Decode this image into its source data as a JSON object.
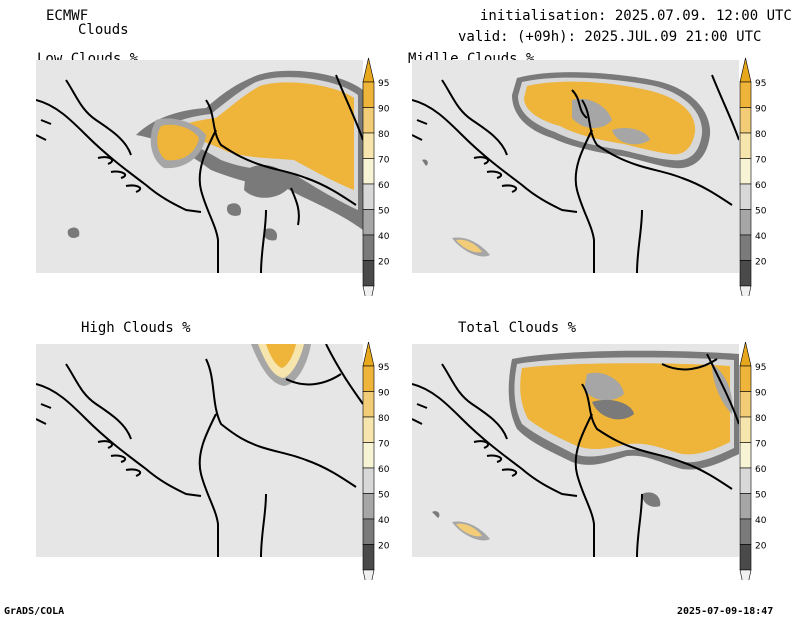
{
  "header": {
    "model": "ECMWF",
    "product": "Clouds",
    "init_line": "initialisation: 2025.07.09. 12:00 UTC",
    "valid_line": "valid: (+09h): 2025.JUL.09 21:00 UTC"
  },
  "panels": [
    {
      "id": "low",
      "title": "Low Clouds %"
    },
    {
      "id": "middle",
      "title": "Midlle Clouds %"
    },
    {
      "id": "high",
      "title": "High Clouds %"
    },
    {
      "id": "total",
      "title": "Total Clouds %"
    }
  ],
  "colorbar": {
    "levels": [
      "95",
      "90",
      "80",
      "70",
      "60",
      "50",
      "40",
      "20"
    ],
    "colors": {
      "above95": "#e8a81e",
      "b90_95": "#efb43a",
      "b80_90": "#f2cc77",
      "b70_80": "#f6e5ad",
      "b60_70": "#f7f4d6",
      "b50_60": "#d8d8d8",
      "b40_50": "#a6a6a6",
      "b20_40": "#7a7a7a",
      "below20": "#4a4a4a",
      "bottom": "#f0f0f0"
    }
  },
  "footer": {
    "left": "GrADS/COLA",
    "right": "2025-07-09-18:47"
  }
}
